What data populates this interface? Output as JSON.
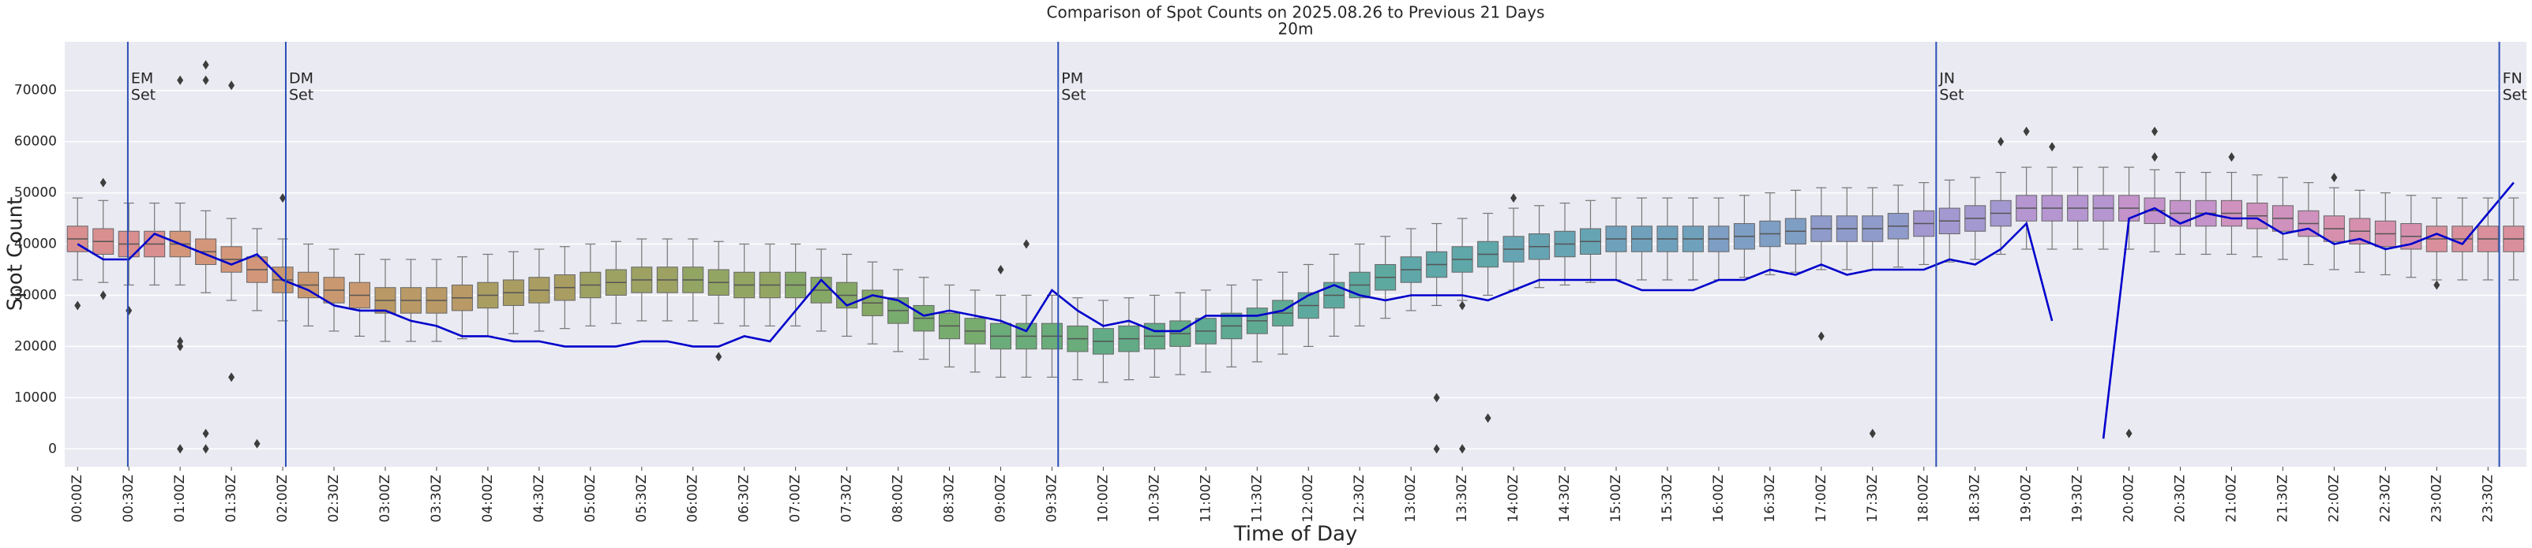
{
  "chart_data": {
    "type": "box",
    "title": "Comparison of Spot Counts on 2025.08.26 to Previous 21 Days",
    "subtitle": "20m",
    "x_label": "Time of Day",
    "y_label": "Spot Count",
    "background": "#eaeaf2",
    "grid": true,
    "ylim": [
      -3500,
      79500
    ],
    "yticks": [
      0,
      10000,
      20000,
      30000,
      40000,
      50000,
      60000,
      70000
    ],
    "categories": [
      "00:00Z",
      null,
      "00:30Z",
      null,
      "01:00Z",
      null,
      "01:30Z",
      null,
      "02:00Z",
      null,
      "02:30Z",
      null,
      "03:00Z",
      null,
      "03:30Z",
      null,
      "04:00Z",
      null,
      "04:30Z",
      null,
      "05:00Z",
      null,
      "05:30Z",
      null,
      "06:00Z",
      null,
      "06:30Z",
      null,
      "07:00Z",
      null,
      "07:30Z",
      null,
      "08:00Z",
      null,
      "08:30Z",
      null,
      "09:00Z",
      null,
      "09:30Z",
      null,
      "10:00Z",
      null,
      "10:30Z",
      null,
      "11:00Z",
      null,
      "11:30Z",
      null,
      "12:00Z",
      null,
      "12:30Z",
      null,
      "13:00Z",
      null,
      "13:30Z",
      null,
      "14:00Z",
      null,
      "14:30Z",
      null,
      "15:00Z",
      null,
      "15:30Z",
      null,
      "16:00Z",
      null,
      "16:30Z",
      null,
      "17:00Z",
      null,
      "17:30Z",
      null,
      "18:00Z",
      null,
      "18:30Z",
      null,
      "19:00Z",
      null,
      "19:30Z",
      null,
      "20:00Z",
      null,
      "20:30Z",
      null,
      "21:00Z",
      null,
      "21:30Z",
      null,
      "22:00Z",
      null,
      "22:30Z",
      null,
      "23:00Z",
      null,
      "23:30Z",
      null
    ],
    "boxes": {
      "median": [
        41000,
        40500,
        40000,
        40000,
        40000,
        38500,
        37000,
        35000,
        33000,
        32000,
        31000,
        30000,
        29000,
        29000,
        29000,
        29500,
        30000,
        30500,
        31000,
        31500,
        32000,
        32500,
        33000,
        33000,
        33000,
        32500,
        32000,
        32000,
        32000,
        31000,
        30000,
        28500,
        27000,
        25500,
        24000,
        23000,
        22000,
        22000,
        22000,
        21500,
        21000,
        21500,
        22000,
        22500,
        23000,
        24000,
        25000,
        26500,
        28000,
        30000,
        32000,
        33500,
        35000,
        36000,
        37000,
        38000,
        39000,
        39500,
        40000,
        40500,
        41000,
        41000,
        41000,
        41000,
        41000,
        41500,
        42000,
        42500,
        43000,
        43000,
        43000,
        43500,
        44000,
        44500,
        45000,
        46000,
        47000,
        47000,
        47000,
        47000,
        47000,
        46500,
        46000,
        46000,
        46000,
        45500,
        45000,
        44000,
        43000,
        42500,
        42000,
        41500,
        41000,
        41000,
        41000,
        41000
      ],
      "q1": [
        38500,
        38000,
        37500,
        37500,
        37500,
        36000,
        34500,
        32500,
        30500,
        29500,
        28500,
        27500,
        26500,
        26500,
        26500,
        27000,
        27500,
        28000,
        28500,
        29000,
        29500,
        30000,
        30500,
        30500,
        30500,
        30000,
        29500,
        29500,
        29500,
        28500,
        27500,
        26000,
        24500,
        23000,
        21500,
        20500,
        19500,
        19500,
        19500,
        19000,
        18500,
        19000,
        19500,
        20000,
        20500,
        21500,
        22500,
        24000,
        25500,
        27500,
        29500,
        31000,
        32500,
        33500,
        34500,
        35500,
        36500,
        37000,
        37500,
        38000,
        38500,
        38500,
        38500,
        38500,
        38500,
        39000,
        39500,
        40000,
        40500,
        40500,
        40500,
        41000,
        41500,
        42000,
        42500,
        43500,
        44500,
        44500,
        44500,
        44500,
        44500,
        44000,
        43500,
        43500,
        43500,
        43000,
        42500,
        41500,
        40500,
        40000,
        39500,
        39000,
        38500,
        38500,
        38500,
        38500
      ],
      "q3": [
        43500,
        43000,
        42500,
        42500,
        42500,
        41000,
        39500,
        37500,
        35500,
        34500,
        33500,
        32500,
        31500,
        31500,
        31500,
        32000,
        32500,
        33000,
        33500,
        34000,
        34500,
        35000,
        35500,
        35500,
        35500,
        35000,
        34500,
        34500,
        34500,
        33500,
        32500,
        31000,
        29500,
        28000,
        26500,
        25500,
        24500,
        24500,
        24500,
        24000,
        23500,
        24000,
        24500,
        25000,
        25500,
        26500,
        27500,
        29000,
        30500,
        32500,
        34500,
        36000,
        37500,
        38500,
        39500,
        40500,
        41500,
        42000,
        42500,
        43000,
        43500,
        43500,
        43500,
        43500,
        43500,
        44000,
        44500,
        45000,
        45500,
        45500,
        45500,
        46000,
        46500,
        47000,
        47500,
        48500,
        49500,
        49500,
        49500,
        49500,
        49500,
        49000,
        48500,
        48500,
        48500,
        48000,
        47500,
        46500,
        45500,
        45000,
        44500,
        44000,
        43500,
        43500,
        43500,
        43500
      ],
      "whislo": [
        33000,
        32500,
        32000,
        32000,
        32000,
        30500,
        29000,
        27000,
        25000,
        24000,
        23000,
        22000,
        21000,
        21000,
        21000,
        21500,
        22000,
        22500,
        23000,
        23500,
        24000,
        24500,
        25000,
        25000,
        25000,
        24500,
        24000,
        24000,
        24000,
        23000,
        22000,
        20500,
        19000,
        17500,
        16000,
        15000,
        14000,
        14000,
        14000,
        13500,
        13000,
        13500,
        14000,
        14500,
        15000,
        16000,
        17000,
        18500,
        20000,
        22000,
        24000,
        25500,
        27000,
        28000,
        29000,
        30000,
        31000,
        31500,
        32000,
        32500,
        33000,
        33000,
        33000,
        33000,
        33000,
        33500,
        34000,
        34500,
        35000,
        35000,
        35000,
        35500,
        36000,
        36500,
        37000,
        38000,
        39000,
        39000,
        39000,
        39000,
        39000,
        38500,
        38000,
        38000,
        38000,
        37500,
        37000,
        36000,
        35000,
        34500,
        34000,
        33500,
        33000,
        33000,
        33000,
        33000
      ],
      "whishi": [
        49000,
        48500,
        48000,
        48000,
        48000,
        46500,
        45000,
        43000,
        41000,
        40000,
        39000,
        38000,
        37000,
        37000,
        37000,
        37500,
        38000,
        38500,
        39000,
        39500,
        40000,
        40500,
        41000,
        41000,
        41000,
        40500,
        40000,
        40000,
        40000,
        39000,
        38000,
        36500,
        35000,
        33500,
        32000,
        31000,
        30000,
        30000,
        30000,
        29500,
        29000,
        29500,
        30000,
        30500,
        31000,
        32000,
        33000,
        34500,
        36000,
        38000,
        40000,
        41500,
        43000,
        44000,
        45000,
        46000,
        47000,
        47500,
        48000,
        48500,
        49000,
        49000,
        49000,
        49000,
        49000,
        49500,
        50000,
        50500,
        51000,
        51000,
        51000,
        51500,
        52000,
        52500,
        53000,
        54000,
        55000,
        55000,
        55000,
        55000,
        55000,
        54500,
        54000,
        54000,
        54000,
        53500,
        53000,
        52000,
        51000,
        50500,
        50000,
        49500,
        49000,
        49000,
        49000,
        49000
      ],
      "colors": [
        "#d98f8f",
        "#d98f8f",
        "#d98f8f",
        "#d98f8f",
        "#d4967a",
        "#d4967a",
        "#d4967a",
        "#d4967a",
        "#c99870",
        "#c99870",
        "#c99870",
        "#c99870",
        "#b99a66",
        "#b99a66",
        "#b99a66",
        "#b99a66",
        "#a99d62",
        "#a99d62",
        "#a99d62",
        "#a99d62",
        "#9da263",
        "#9da263",
        "#9da263",
        "#9da263",
        "#93a563",
        "#93a563",
        "#93a563",
        "#93a563",
        "#86a866",
        "#86a866",
        "#86a866",
        "#86a866",
        "#78ab6e",
        "#78ab6e",
        "#78ab6e",
        "#78ab6e",
        "#6aac7a",
        "#6aac7a",
        "#6aac7a",
        "#6aac7a",
        "#62ab86",
        "#62ab86",
        "#62ab86",
        "#62ab86",
        "#5faa93",
        "#5faa93",
        "#5faa93",
        "#5faa93",
        "#5ea99f",
        "#5ea99f",
        "#5ea99f",
        "#5ea99f",
        "#60a7a9",
        "#60a7a9",
        "#60a7a9",
        "#60a7a9",
        "#66a4b3",
        "#66a4b3",
        "#66a4b3",
        "#66a4b3",
        "#6fa1bc",
        "#6fa1bc",
        "#6fa1bc",
        "#6fa1bc",
        "#7e9ec4",
        "#7e9ec4",
        "#7e9ec4",
        "#7e9ec4",
        "#8f9bcb",
        "#8f9bcb",
        "#8f9bcb",
        "#8f9bcb",
        "#a398d0",
        "#a398d0",
        "#a398d0",
        "#a398d0",
        "#b596d0",
        "#b596d0",
        "#b596d0",
        "#b596d0",
        "#c493ca",
        "#c493ca",
        "#c493ca",
        "#c493ca",
        "#cf91bd",
        "#cf91bd",
        "#cf91bd",
        "#cf91bd",
        "#d690ad",
        "#d690ad",
        "#d690ad",
        "#d690ad",
        "#da8f9c",
        "#da8f9c",
        "#da8f9c",
        "#da8f9c"
      ]
    },
    "outliers": {
      "box": [
        1,
        0,
        1,
        2,
        4,
        4,
        4,
        5,
        5,
        6,
        4,
        5,
        5,
        6,
        7,
        8,
        25,
        36,
        37,
        53,
        53,
        54,
        55,
        56,
        54,
        70,
        68,
        75,
        76,
        77,
        80,
        81,
        81,
        84,
        88,
        92
      ],
      "values": [
        52000,
        28000,
        30000,
        27000,
        20000,
        21000,
        72000,
        75000,
        72000,
        71000,
        0,
        3000,
        0,
        14000,
        1000,
        49000,
        18000,
        35000,
        40000,
        0,
        10000,
        0,
        6000,
        49000,
        28000,
        3000,
        22000,
        60000,
        62000,
        59000,
        3000,
        62000,
        57000,
        57000,
        53000,
        32000
      ]
    },
    "line": {
      "color": "#0000cc",
      "values": [
        40000,
        37000,
        37000,
        42000,
        40000,
        38000,
        36000,
        38000,
        33000,
        31000,
        28000,
        27000,
        27000,
        25000,
        24000,
        22000,
        22000,
        21000,
        21000,
        20000,
        20000,
        20000,
        21000,
        21000,
        20000,
        20000,
        22000,
        21000,
        27000,
        33000,
        28000,
        30000,
        29000,
        26000,
        27000,
        26000,
        25000,
        23000,
        31000,
        27000,
        24000,
        25000,
        23000,
        23000,
        26000,
        26000,
        26000,
        27000,
        30000,
        32000,
        30000,
        29000,
        30000,
        30000,
        30000,
        29000,
        31000,
        33000,
        33000,
        33000,
        33000,
        31000,
        31000,
        31000,
        33000,
        33000,
        35000,
        34000,
        36000,
        34000,
        35000,
        35000,
        35000,
        37000,
        36000,
        39000,
        44000,
        25000,
        null,
        2000,
        45000,
        47000,
        44000,
        46000,
        45000,
        45000,
        42000,
        43000,
        40000,
        41000,
        39000,
        40000,
        42000,
        40000,
        46000,
        52000
      ]
    },
    "markers": [
      {
        "hour": 0.49,
        "label": [
          "EM",
          "Set"
        ]
      },
      {
        "hour": 2.03,
        "label": [
          "DM",
          "Set"
        ]
      },
      {
        "hour": 9.56,
        "label": [
          "PM",
          "Set"
        ]
      },
      {
        "hour": 18.12,
        "label": [
          "JN",
          "Set"
        ]
      },
      {
        "hour": 23.61,
        "label": [
          "FN",
          "Set"
        ]
      }
    ],
    "marker_color": "#2a4fb8"
  }
}
